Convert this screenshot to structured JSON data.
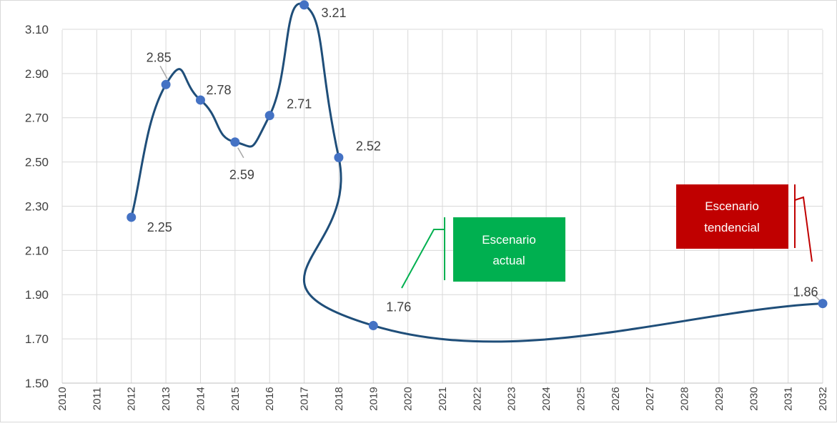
{
  "chart_data": {
    "type": "line",
    "smooth": true,
    "title": "",
    "xlabel": "",
    "ylabel": "",
    "ylim": [
      1.5,
      3.2
    ],
    "yticks": [
      "1.50",
      "1.70",
      "1.90",
      "2.10",
      "2.30",
      "2.50",
      "2.70",
      "2.90",
      "3.10"
    ],
    "x_categories": [
      "2010",
      "2011",
      "2012",
      "2013",
      "2014",
      "2015",
      "2016",
      "2017",
      "2018",
      "2019",
      "2020",
      "2021",
      "2022",
      "2023",
      "2024",
      "2025",
      "2026",
      "2027",
      "2028",
      "2029",
      "2030",
      "2031",
      "2032"
    ],
    "grid": true,
    "legend": "none",
    "series": [
      {
        "color": "#1f4e79",
        "marker_color": "#4472c4",
        "points": [
          {
            "x": "2012",
            "y": 2.25,
            "label": "2.25"
          },
          {
            "x": "2013",
            "y": 2.85,
            "label": "2.85"
          },
          {
            "x": "2014",
            "y": 2.78,
            "label": "2.78"
          },
          {
            "x": "2015",
            "y": 2.59,
            "label": "2.59"
          },
          {
            "x": "2016",
            "y": 2.71,
            "label": "2.71"
          },
          {
            "x": "2017",
            "y": 3.21,
            "label": "3.21"
          },
          {
            "x": "2018",
            "y": 2.52,
            "label": "2.52"
          },
          {
            "x": "2019",
            "y": 1.76,
            "label": "1.76"
          },
          {
            "x": "2032",
            "y": 1.86,
            "label": "1.86"
          }
        ]
      }
    ],
    "annotations": [
      {
        "text_lines": [
          "Escenario",
          "actual"
        ],
        "color": "#00b050"
      },
      {
        "text_lines": [
          "Escenario",
          "tendencial"
        ],
        "color": "#c00000"
      }
    ]
  }
}
